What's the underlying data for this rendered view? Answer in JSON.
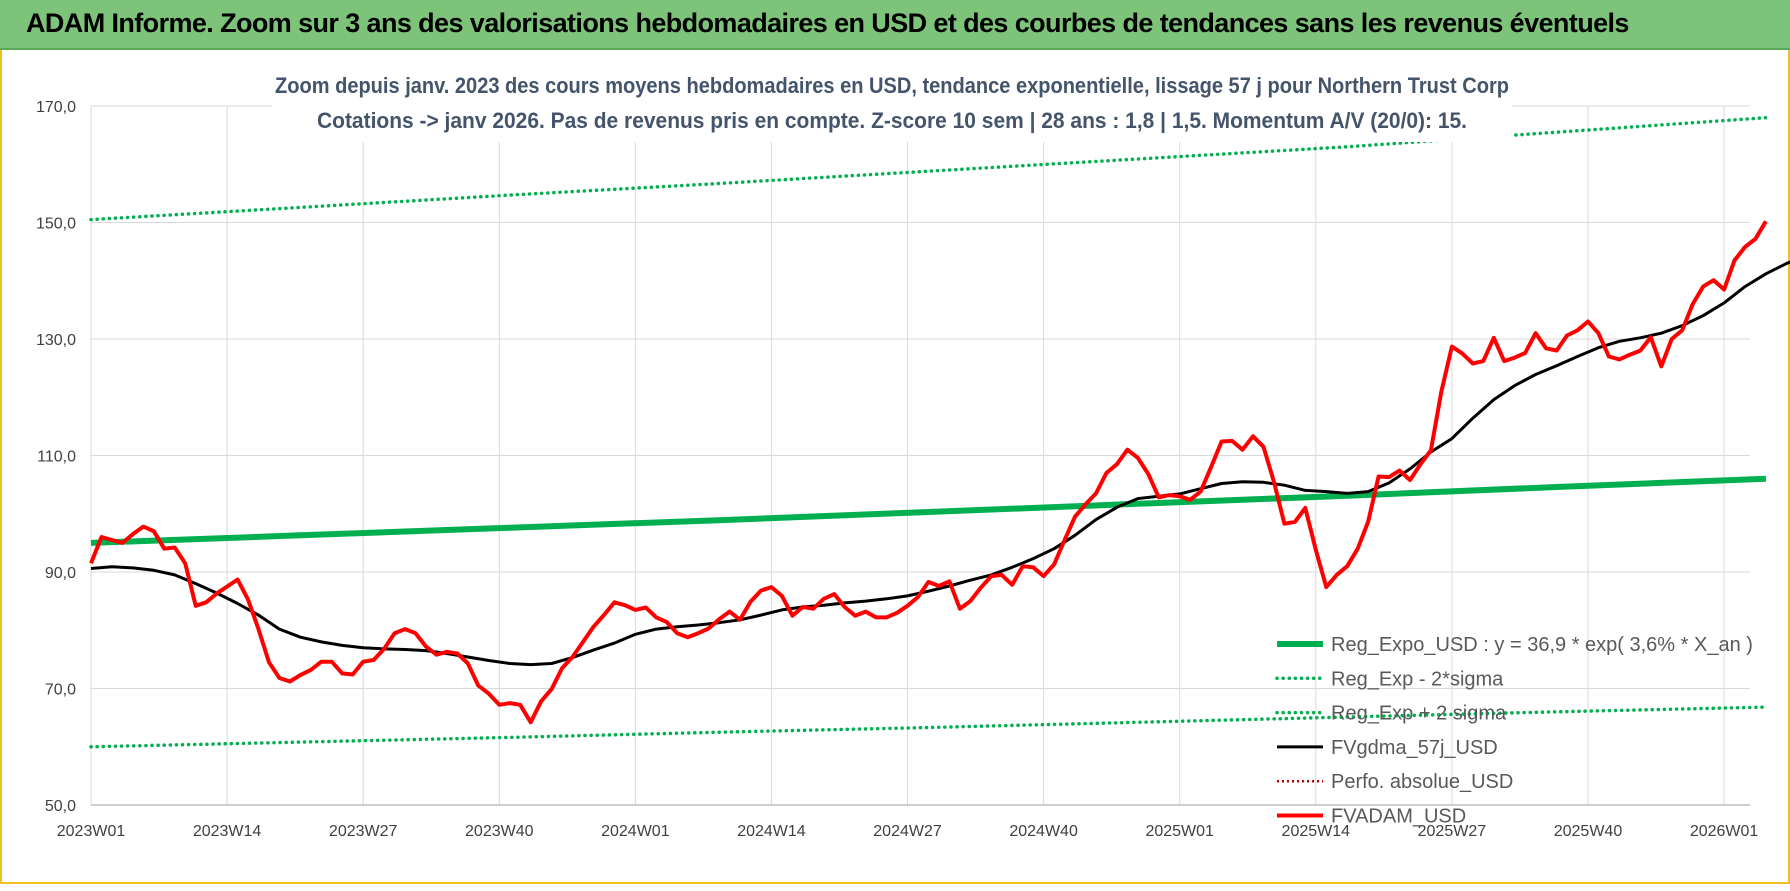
{
  "banner": {
    "title": "ADAM Informe. Zoom sur 3 ans des valorisations hebdomadaires en USD et des courbes de tendances sans les revenus éventuels"
  },
  "colors": {
    "banner_bg": "#7dc47a",
    "regression": "#00b050",
    "moving_average": "#000000",
    "price": "#ff0000",
    "perfo": "#c00000",
    "grid": "#d9d9d9"
  },
  "chart_data": {
    "type": "line",
    "title": "Zoom depuis janv. 2023 des cours moyens hebdomadaires en USD, tendance exponentielle, lissage 57 j pour Northern Trust Corp",
    "subtitle": "Cotations -> janv 2026. Pas de revenus pris en compte. Z-score 10 sem  | 28 ans : 1,8 | 1,5. Momentum A/V (20/0): 15.",
    "xlabel": "",
    "ylabel": "",
    "ylim": [
      50,
      170
    ],
    "y_ticks": [
      "50,0",
      "70,0",
      "90,0",
      "110,0",
      "130,0",
      "150,0",
      "170,0"
    ],
    "x_range": [
      0,
      158
    ],
    "x_ticks": [
      {
        "label": "2023W01",
        "week": 0
      },
      {
        "label": "2023W14",
        "week": 13
      },
      {
        "label": "2023W27",
        "week": 26
      },
      {
        "label": "2023W40",
        "week": 39
      },
      {
        "label": "2024W01",
        "week": 52
      },
      {
        "label": "2024W14",
        "week": 65
      },
      {
        "label": "2024W27",
        "week": 78
      },
      {
        "label": "2024W40",
        "week": 91
      },
      {
        "label": "2025W01",
        "week": 104
      },
      {
        "label": "2025W14",
        "week": 117
      },
      {
        "label": "2025W27",
        "week": 130
      },
      {
        "label": "2025W40",
        "week": 143
      },
      {
        "label": "2026W01",
        "week": 156
      }
    ],
    "grid": true,
    "legend_position": "bottom-right",
    "series": [
      {
        "name": "Reg_Expo_USD : y = 36,9 * exp( 3,6% *  X_an )",
        "style": "thick",
        "points": [
          [
            0,
            95.0
          ],
          [
            20,
            96.3
          ],
          [
            40,
            97.6
          ],
          [
            60,
            98.9
          ],
          [
            80,
            100.3
          ],
          [
            100,
            101.7
          ],
          [
            120,
            103.1
          ],
          [
            140,
            104.6
          ],
          [
            160,
            106.0
          ]
        ]
      },
      {
        "name": "Reg_Exp - 2*sigma",
        "style": "dotted",
        "points": [
          [
            0,
            60.0
          ],
          [
            20,
            60.8
          ],
          [
            40,
            61.6
          ],
          [
            60,
            62.5
          ],
          [
            80,
            63.3
          ],
          [
            100,
            64.2
          ],
          [
            120,
            65.1
          ],
          [
            140,
            66.0
          ],
          [
            160,
            66.8
          ]
        ]
      },
      {
        "name": "Reg_Exp + 2 sigma",
        "style": "dotted",
        "points": [
          [
            0,
            150.5
          ],
          [
            20,
            152.6
          ],
          [
            40,
            154.7
          ],
          [
            60,
            156.7
          ],
          [
            80,
            158.8
          ],
          [
            100,
            160.9
          ],
          [
            120,
            163.0
          ],
          [
            140,
            165.5
          ],
          [
            160,
            168.0
          ]
        ]
      },
      {
        "name": "FVgdma_57j_USD",
        "style": "solid",
        "points": [
          [
            0,
            90.6
          ],
          [
            2,
            90.9
          ],
          [
            4,
            90.7
          ],
          [
            6,
            90.3
          ],
          [
            8,
            89.5
          ],
          [
            10,
            88.0
          ],
          [
            12,
            86.4
          ],
          [
            14,
            84.6
          ],
          [
            16,
            82.6
          ],
          [
            18,
            80.2
          ],
          [
            20,
            78.8
          ],
          [
            22,
            78.0
          ],
          [
            24,
            77.4
          ],
          [
            26,
            77.0
          ],
          [
            28,
            76.8
          ],
          [
            30,
            76.7
          ],
          [
            32,
            76.5
          ],
          [
            34,
            76.0
          ],
          [
            36,
            75.4
          ],
          [
            38,
            74.8
          ],
          [
            40,
            74.3
          ],
          [
            42,
            74.1
          ],
          [
            44,
            74.3
          ],
          [
            46,
            75.3
          ],
          [
            48,
            76.6
          ],
          [
            50,
            77.8
          ],
          [
            52,
            79.3
          ],
          [
            54,
            80.2
          ],
          [
            56,
            80.6
          ],
          [
            58,
            80.9
          ],
          [
            60,
            81.3
          ],
          [
            62,
            81.8
          ],
          [
            64,
            82.6
          ],
          [
            66,
            83.5
          ],
          [
            68,
            84.0
          ],
          [
            70,
            84.3
          ],
          [
            72,
            84.7
          ],
          [
            74,
            85.0
          ],
          [
            76,
            85.4
          ],
          [
            78,
            85.9
          ],
          [
            80,
            86.7
          ],
          [
            82,
            87.6
          ],
          [
            84,
            88.6
          ],
          [
            86,
            89.5
          ],
          [
            88,
            90.8
          ],
          [
            90,
            92.3
          ],
          [
            92,
            94.0
          ],
          [
            94,
            96.3
          ],
          [
            96,
            99.0
          ],
          [
            98,
            101.1
          ],
          [
            100,
            102.6
          ],
          [
            102,
            103.0
          ],
          [
            104,
            103.4
          ],
          [
            106,
            104.3
          ],
          [
            108,
            105.2
          ],
          [
            110,
            105.5
          ],
          [
            112,
            105.4
          ],
          [
            114,
            104.9
          ],
          [
            116,
            104.0
          ],
          [
            118,
            103.8
          ],
          [
            120,
            103.5
          ],
          [
            122,
            103.8
          ],
          [
            124,
            105.3
          ],
          [
            126,
            107.7
          ],
          [
            128,
            110.6
          ],
          [
            130,
            112.9
          ],
          [
            132,
            116.4
          ],
          [
            134,
            119.6
          ],
          [
            136,
            122.0
          ],
          [
            138,
            123.9
          ],
          [
            140,
            125.4
          ],
          [
            142,
            127.0
          ],
          [
            144,
            128.5
          ],
          [
            146,
            129.6
          ],
          [
            148,
            130.2
          ],
          [
            150,
            131.0
          ],
          [
            152,
            132.3
          ],
          [
            154,
            134.0
          ],
          [
            156,
            136.2
          ],
          [
            158,
            139.0
          ],
          [
            160,
            141.2
          ],
          [
            162,
            143.0
          ],
          [
            163,
            143.7
          ]
        ]
      },
      {
        "name": "Perfo. absolue_USD",
        "style": "dotted-red",
        "points": []
      },
      {
        "name": "FVADAM_USD",
        "style": "thick",
        "points": [
          [
            0,
            91.5
          ],
          [
            1,
            96.0
          ],
          [
            2,
            95.5
          ],
          [
            3,
            95.0
          ],
          [
            4,
            96.5
          ],
          [
            5,
            97.8
          ],
          [
            6,
            97.0
          ],
          [
            7,
            94.0
          ],
          [
            8,
            94.2
          ],
          [
            9,
            91.5
          ],
          [
            10,
            84.2
          ],
          [
            11,
            84.8
          ],
          [
            12,
            86.3
          ],
          [
            13,
            87.5
          ],
          [
            14,
            88.7
          ],
          [
            15,
            85.3
          ],
          [
            16,
            80.2
          ],
          [
            17,
            74.5
          ],
          [
            18,
            71.8
          ],
          [
            19,
            71.2
          ],
          [
            20,
            72.3
          ],
          [
            21,
            73.2
          ],
          [
            22,
            74.6
          ],
          [
            23,
            74.6
          ],
          [
            24,
            72.6
          ],
          [
            25,
            72.4
          ],
          [
            26,
            74.6
          ],
          [
            27,
            74.9
          ],
          [
            28,
            76.8
          ],
          [
            29,
            79.5
          ],
          [
            30,
            80.2
          ],
          [
            31,
            79.5
          ],
          [
            32,
            77.2
          ],
          [
            33,
            75.8
          ],
          [
            34,
            76.3
          ],
          [
            35,
            76.0
          ],
          [
            36,
            74.3
          ],
          [
            37,
            70.5
          ],
          [
            38,
            69.1
          ],
          [
            39,
            67.2
          ],
          [
            40,
            67.5
          ],
          [
            41,
            67.2
          ],
          [
            42,
            64.2
          ],
          [
            43,
            67.8
          ],
          [
            44,
            69.9
          ],
          [
            45,
            73.5
          ],
          [
            46,
            75.4
          ],
          [
            47,
            78.0
          ],
          [
            48,
            80.6
          ],
          [
            49,
            82.6
          ],
          [
            50,
            84.8
          ],
          [
            51,
            84.3
          ],
          [
            52,
            83.5
          ],
          [
            53,
            83.9
          ],
          [
            54,
            82.2
          ],
          [
            55,
            81.4
          ],
          [
            56,
            79.5
          ],
          [
            57,
            78.8
          ],
          [
            58,
            79.5
          ],
          [
            59,
            80.3
          ],
          [
            60,
            81.9
          ],
          [
            61,
            83.2
          ],
          [
            62,
            81.8
          ],
          [
            63,
            84.9
          ],
          [
            64,
            86.8
          ],
          [
            65,
            87.4
          ],
          [
            66,
            85.9
          ],
          [
            67,
            82.5
          ],
          [
            68,
            84.0
          ],
          [
            69,
            83.7
          ],
          [
            70,
            85.4
          ],
          [
            71,
            86.2
          ],
          [
            72,
            84.0
          ],
          [
            73,
            82.5
          ],
          [
            74,
            83.2
          ],
          [
            75,
            82.2
          ],
          [
            76,
            82.2
          ],
          [
            77,
            83.0
          ],
          [
            78,
            84.2
          ],
          [
            79,
            85.7
          ],
          [
            80,
            88.3
          ],
          [
            81,
            87.6
          ],
          [
            82,
            88.4
          ],
          [
            83,
            83.7
          ],
          [
            84,
            85.0
          ],
          [
            85,
            87.3
          ],
          [
            86,
            89.3
          ],
          [
            87,
            89.5
          ],
          [
            88,
            87.8
          ],
          [
            89,
            91.0
          ],
          [
            90,
            90.8
          ],
          [
            91,
            89.3
          ],
          [
            92,
            91.3
          ],
          [
            93,
            95.5
          ],
          [
            94,
            99.5
          ],
          [
            95,
            101.6
          ],
          [
            96,
            103.5
          ],
          [
            97,
            107.0
          ],
          [
            98,
            108.5
          ],
          [
            99,
            111.0
          ],
          [
            100,
            109.6
          ],
          [
            101,
            106.8
          ],
          [
            102,
            102.8
          ],
          [
            103,
            103.2
          ],
          [
            104,
            103.0
          ],
          [
            105,
            102.4
          ],
          [
            106,
            103.8
          ],
          [
            107,
            108.0
          ],
          [
            108,
            112.4
          ],
          [
            109,
            112.5
          ],
          [
            110,
            111.0
          ],
          [
            111,
            113.3
          ],
          [
            112,
            111.5
          ],
          [
            113,
            105.5
          ],
          [
            114,
            98.3
          ],
          [
            115,
            98.6
          ],
          [
            116,
            101.0
          ],
          [
            117,
            93.8
          ],
          [
            118,
            87.4
          ],
          [
            119,
            89.5
          ],
          [
            120,
            91.0
          ],
          [
            121,
            94.0
          ],
          [
            122,
            98.6
          ],
          [
            123,
            106.4
          ],
          [
            124,
            106.3
          ],
          [
            125,
            107.4
          ],
          [
            126,
            105.8
          ],
          [
            127,
            108.5
          ],
          [
            128,
            110.9
          ],
          [
            129,
            121.0
          ],
          [
            130,
            128.7
          ],
          [
            131,
            127.5
          ],
          [
            132,
            125.8
          ],
          [
            133,
            126.2
          ],
          [
            134,
            130.2
          ],
          [
            135,
            126.2
          ],
          [
            136,
            126.8
          ],
          [
            137,
            127.6
          ],
          [
            138,
            131.0
          ],
          [
            139,
            128.4
          ],
          [
            140,
            128.0
          ],
          [
            141,
            130.6
          ],
          [
            142,
            131.5
          ],
          [
            143,
            133.0
          ],
          [
            144,
            131.0
          ],
          [
            145,
            127.0
          ],
          [
            146,
            126.5
          ],
          [
            147,
            127.3
          ],
          [
            148,
            128.0
          ],
          [
            149,
            130.3
          ],
          [
            150,
            125.3
          ],
          [
            151,
            130.0
          ],
          [
            152,
            131.5
          ],
          [
            153,
            136.0
          ],
          [
            154,
            139.0
          ],
          [
            155,
            140.1
          ],
          [
            156,
            138.5
          ],
          [
            157,
            143.5
          ],
          [
            158,
            145.8
          ],
          [
            159,
            147.2
          ],
          [
            160,
            150.2
          ]
        ]
      }
    ]
  }
}
